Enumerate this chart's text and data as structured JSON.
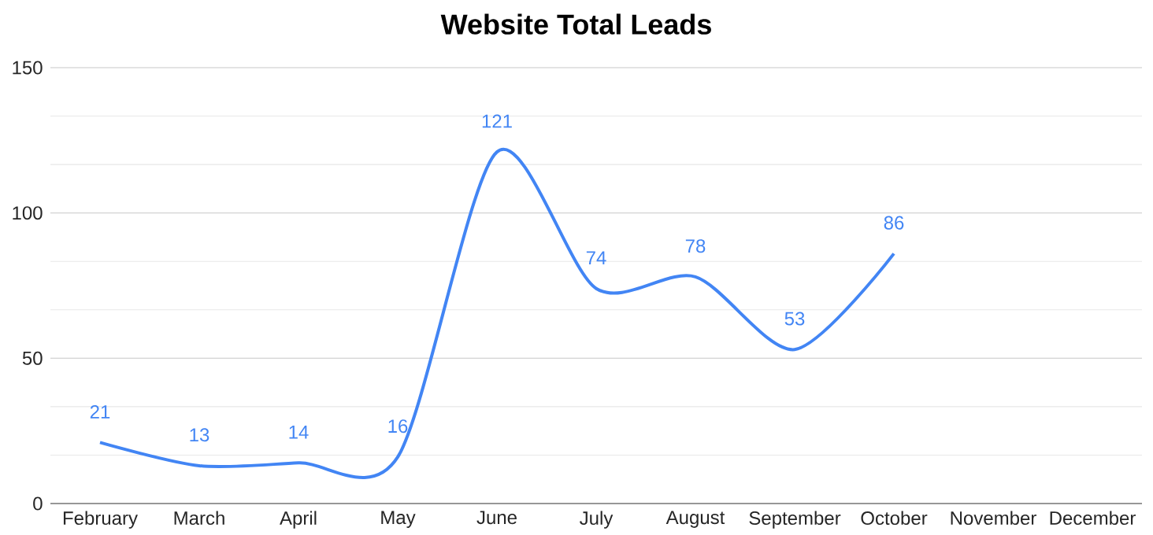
{
  "chart_data": {
    "type": "line",
    "title": "Website Total Leads",
    "categories": [
      "February",
      "March",
      "April",
      "May",
      "June",
      "July",
      "August",
      "September",
      "October",
      "November",
      "December"
    ],
    "series": [
      {
        "color": "#4285f4",
        "values": [
          21,
          13,
          14,
          16,
          121,
          74,
          78,
          53,
          86,
          null,
          null
        ]
      }
    ],
    "ylim": [
      0,
      150
    ],
    "yticks": [
      0,
      50,
      100,
      150
    ],
    "grid": "y",
    "data_labels": true,
    "marker": "none",
    "line_style": "solid"
  }
}
